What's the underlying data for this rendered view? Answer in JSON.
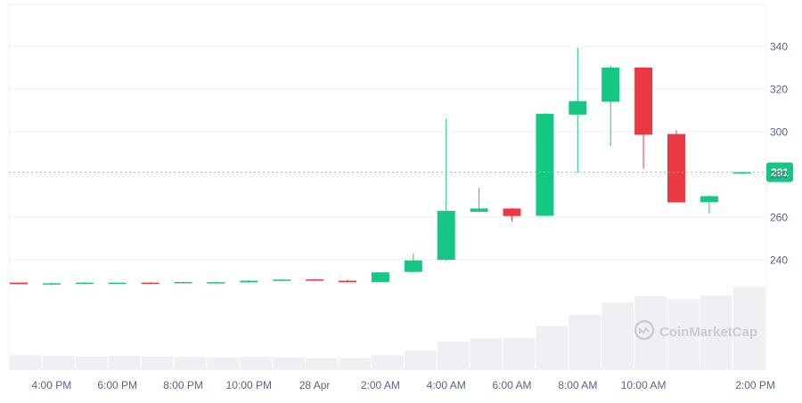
{
  "chart_data": {
    "type": "candlestick",
    "title": "",
    "xlabel": "",
    "ylabel": "",
    "ylim": [
      215,
      355
    ],
    "y_ticks": [
      240,
      260,
      280,
      300,
      320,
      340
    ],
    "x_ticks": [
      "4:00 PM",
      "6:00 PM",
      "8:00 PM",
      "10:00 PM",
      "28 Apr",
      "2:00 AM",
      "4:00 AM",
      "6:00 AM",
      "8:00 AM",
      "10:00 AM",
      "2:00 PM"
    ],
    "current_price": 281,
    "watermark": "CoinMarketCap",
    "grid": true,
    "colors": {
      "up": "#16c784",
      "down": "#ea3943",
      "volume": "#eff0f3",
      "grid": "#eff2f5",
      "axis_text": "#58667e"
    },
    "candles": [
      {
        "time": "15:00",
        "open": 229.3,
        "high": 229.4,
        "low": 228.6,
        "close": 228.6
      },
      {
        "time": "16:00",
        "open": 228.6,
        "high": 229.4,
        "low": 228.0,
        "close": 229.0
      },
      {
        "time": "17:00",
        "open": 228.9,
        "high": 229.5,
        "low": 228.6,
        "close": 229.3
      },
      {
        "time": "18:00",
        "open": 229.2,
        "high": 229.4,
        "low": 228.9,
        "close": 229.3
      },
      {
        "time": "19:00",
        "open": 229.3,
        "high": 229.5,
        "low": 228.8,
        "close": 229.0
      },
      {
        "time": "20:00",
        "open": 229.0,
        "high": 229.8,
        "low": 228.9,
        "close": 229.6
      },
      {
        "time": "21:00",
        "open": 229.4,
        "high": 229.7,
        "low": 229.2,
        "close": 229.5
      },
      {
        "time": "22:00",
        "open": 229.4,
        "high": 230.4,
        "low": 229.1,
        "close": 230.2
      },
      {
        "time": "23:00",
        "open": 230.2,
        "high": 230.9,
        "low": 230.0,
        "close": 230.7
      },
      {
        "time": "00:00",
        "open": 230.8,
        "high": 231.0,
        "low": 230.0,
        "close": 230.3
      },
      {
        "time": "01:00",
        "open": 230.2,
        "high": 230.6,
        "low": 229.3,
        "close": 229.5
      },
      {
        "time": "02:00",
        "open": 229.6,
        "high": 234.3,
        "low": 229.4,
        "close": 234.1
      },
      {
        "time": "03:00",
        "open": 234.3,
        "high": 243.0,
        "low": 234.0,
        "close": 239.7
      },
      {
        "time": "04:00",
        "open": 240.0,
        "high": 305.9,
        "low": 239.5,
        "close": 262.9
      },
      {
        "time": "05:00",
        "open": 262.5,
        "high": 273.8,
        "low": 262.2,
        "close": 264.0
      },
      {
        "time": "06:00",
        "open": 264.0,
        "high": 264.3,
        "low": 258.0,
        "close": 260.5
      },
      {
        "time": "07:00",
        "open": 260.6,
        "high": 308.6,
        "low": 260.5,
        "close": 308.4
      },
      {
        "time": "08:00",
        "open": 308.0,
        "high": 339.3,
        "low": 280.6,
        "close": 314.3
      },
      {
        "time": "09:00",
        "open": 314.0,
        "high": 330.9,
        "low": 293.2,
        "close": 330.0
      },
      {
        "time": "10:00",
        "open": 330.0,
        "high": 330.3,
        "low": 282.7,
        "close": 298.6
      },
      {
        "time": "11:00",
        "open": 298.9,
        "high": 300.6,
        "low": 266.9,
        "close": 266.9
      },
      {
        "time": "12:00",
        "open": 267.0,
        "high": 270.2,
        "low": 261.6,
        "close": 269.8
      },
      {
        "time": "13:00",
        "open": 281.0,
        "high": 281.3,
        "low": 280.7,
        "close": 281.0
      }
    ],
    "volume_level": [
      0.26,
      0.25,
      0.24,
      0.25,
      0.24,
      0.23,
      0.22,
      0.23,
      0.22,
      0.21,
      0.21,
      0.26,
      0.35,
      0.52,
      0.58,
      0.59,
      0.81,
      1.02,
      1.25,
      1.37,
      1.31,
      1.38,
      1.54
    ]
  }
}
